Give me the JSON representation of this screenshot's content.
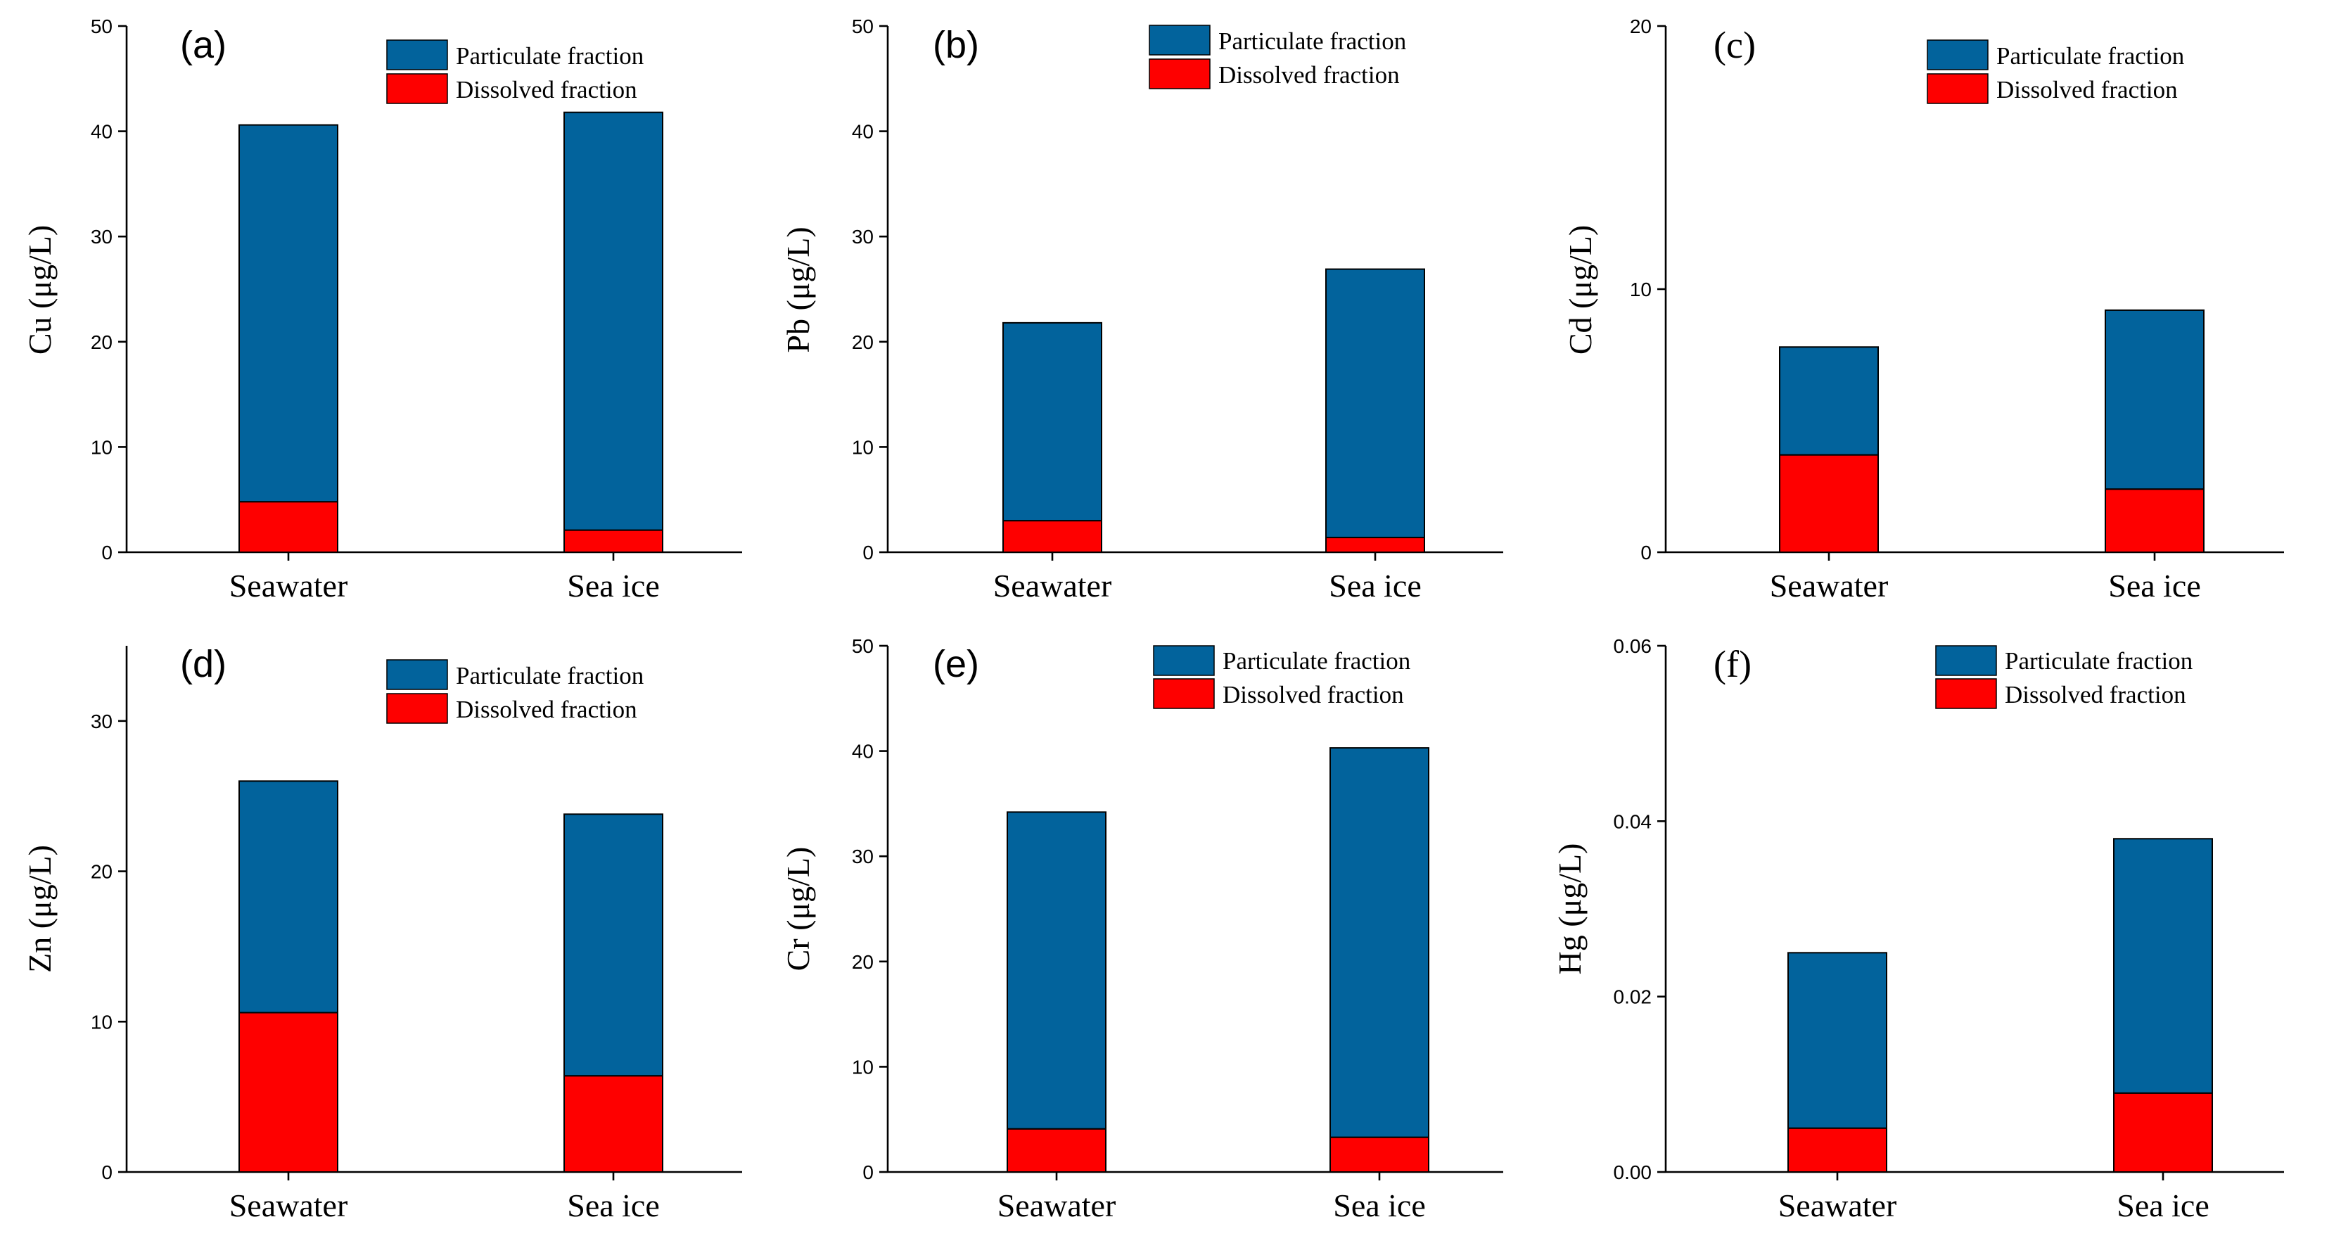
{
  "colors": {
    "particulate": "#02639c",
    "dissolved": "#fe0000"
  },
  "chart_data": [
    {
      "panel_id": "a",
      "panel_label": "(a)",
      "type": "bar",
      "stacked": true,
      "ylabel": "Cu (μg/L)",
      "ylim": [
        0,
        50
      ],
      "yticks": [
        0,
        10,
        20,
        30,
        40,
        50
      ],
      "ytick_labels": [
        "0",
        "10",
        "20",
        "30",
        "40",
        "50"
      ],
      "categories": [
        "Seawater",
        "Sea ice"
      ],
      "series": [
        {
          "name": "Dissolved fraction",
          "values": [
            4.8,
            2.1
          ]
        },
        {
          "name": "Particulate fraction",
          "values": [
            35.8,
            39.7
          ]
        }
      ],
      "legend": [
        "Particulate fraction",
        "Dissolved fraction"
      ],
      "legend_position": "top-right"
    },
    {
      "panel_id": "b",
      "panel_label": "(b)",
      "type": "bar",
      "stacked": true,
      "ylabel": "Pb (μg/L)",
      "ylim": [
        0,
        50
      ],
      "yticks": [
        0,
        10,
        20,
        30,
        40,
        50
      ],
      "ytick_labels": [
        "0",
        "10",
        "20",
        "30",
        "40",
        "50"
      ],
      "categories": [
        "Seawater",
        "Sea ice"
      ],
      "series": [
        {
          "name": "Dissolved fraction",
          "values": [
            3.0,
            1.4
          ]
        },
        {
          "name": "Particulate fraction",
          "values": [
            18.8,
            25.5
          ]
        }
      ],
      "legend": [
        "Particulate fraction",
        "Dissolved fraction"
      ],
      "legend_position": "top-right"
    },
    {
      "panel_id": "c",
      "panel_label": "(c)",
      "type": "bar",
      "stacked": true,
      "ylabel": "Cd (μg/L)",
      "ylim": [
        0,
        20
      ],
      "yticks": [
        0,
        10,
        20
      ],
      "ytick_labels": [
        "0",
        "10",
        "20"
      ],
      "categories": [
        "Seawater",
        "Sea ice"
      ],
      "series": [
        {
          "name": "Dissolved fraction",
          "values": [
            3.7,
            2.4
          ]
        },
        {
          "name": "Particulate fraction",
          "values": [
            4.1,
            6.8
          ]
        }
      ],
      "legend": [
        "Particulate fraction",
        "Dissolved fraction"
      ],
      "legend_position": "top-right"
    },
    {
      "panel_id": "d",
      "panel_label": "(d)",
      "type": "bar",
      "stacked": true,
      "ylabel": "Zn (μg/L)",
      "ylim": [
        0,
        35
      ],
      "yticks": [
        0,
        10,
        20,
        30
      ],
      "ytick_labels": [
        "0",
        "10",
        "20",
        "30"
      ],
      "categories": [
        "Seawater",
        "Sea ice"
      ],
      "series": [
        {
          "name": "Dissolved fraction",
          "values": [
            10.6,
            6.4
          ]
        },
        {
          "name": "Particulate fraction",
          "values": [
            15.4,
            17.4
          ]
        }
      ],
      "legend": [
        "Particulate fraction",
        "Dissolved fraction"
      ],
      "legend_position": "top-right"
    },
    {
      "panel_id": "e",
      "panel_label": "(e)",
      "type": "bar",
      "stacked": true,
      "ylabel": "Cr (μg/L)",
      "ylim": [
        0,
        50
      ],
      "yticks": [
        0,
        10,
        20,
        30,
        40,
        50
      ],
      "ytick_labels": [
        "0",
        "10",
        "20",
        "30",
        "40",
        "50"
      ],
      "categories": [
        "Seawater",
        "Sea ice"
      ],
      "series": [
        {
          "name": "Dissolved fraction",
          "values": [
            4.1,
            3.3
          ]
        },
        {
          "name": "Particulate fraction",
          "values": [
            30.1,
            37.0
          ]
        }
      ],
      "legend": [
        "Particulate fraction",
        "Dissolved fraction"
      ],
      "legend_position": "top-right"
    },
    {
      "panel_id": "f",
      "panel_label": "(f)",
      "type": "bar",
      "stacked": true,
      "ylabel": "Hg (μg/L)",
      "ylim": [
        0,
        0.06
      ],
      "yticks": [
        0,
        0.02,
        0.04,
        0.06
      ],
      "ytick_labels": [
        "0.00",
        "0.02",
        "0.04",
        "0.06"
      ],
      "categories": [
        "Seawater",
        "Sea ice"
      ],
      "series": [
        {
          "name": "Dissolved fraction",
          "values": [
            0.005,
            0.009
          ]
        },
        {
          "name": "Particulate fraction",
          "values": [
            0.02,
            0.029
          ]
        }
      ],
      "legend": [
        "Particulate fraction",
        "Dissolved fraction"
      ],
      "legend_position": "top-right"
    }
  ]
}
